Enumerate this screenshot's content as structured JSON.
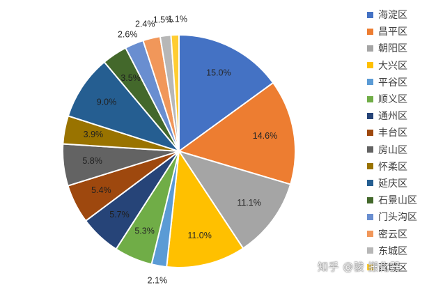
{
  "chart_data": {
    "type": "pie",
    "title": "",
    "start_angle": 0,
    "direction": "clockwise",
    "legend_position": "right",
    "slices": [
      {
        "name": "海淀区",
        "value": 15.0,
        "label": "15.0%",
        "color": "#4472C4"
      },
      {
        "name": "昌平区",
        "value": 14.6,
        "label": "14.6%",
        "color": "#ED7D31"
      },
      {
        "name": "朝阳区",
        "value": 11.1,
        "label": "11.1%",
        "color": "#A5A5A5"
      },
      {
        "name": "大兴区",
        "value": 11.0,
        "label": "11.0%",
        "color": "#FFC000"
      },
      {
        "name": "平谷区",
        "value": 2.1,
        "label": "2.1%",
        "color": "#5B9BD5"
      },
      {
        "name": "顺义区",
        "value": 5.3,
        "label": "5.3%",
        "color": "#70AD47"
      },
      {
        "name": "通州区",
        "value": 5.7,
        "label": "5.7%",
        "color": "#264478"
      },
      {
        "name": "丰台区",
        "value": 5.4,
        "label": "5.4%",
        "color": "#9E480E"
      },
      {
        "name": "房山区",
        "value": 5.8,
        "label": "5.8%",
        "color": "#636363"
      },
      {
        "name": "怀柔区",
        "value": 3.9,
        "label": "3.9%",
        "color": "#997300"
      },
      {
        "name": "延庆区",
        "value": 9.0,
        "label": "9.0%",
        "color": "#255E91"
      },
      {
        "name": "石景山区",
        "value": 3.5,
        "label": "3.5%",
        "color": "#43682B"
      },
      {
        "name": "门头沟区",
        "value": 2.6,
        "label": "2.6%",
        "color": "#698ED0"
      },
      {
        "name": "密云区",
        "value": 2.4,
        "label": "2.4%",
        "color": "#F1975A"
      },
      {
        "name": "东城区",
        "value": 1.5,
        "label": "1.5%",
        "color": "#B7B7B7"
      },
      {
        "name": "西城区",
        "value": 1.1,
        "label": "1.1%",
        "color": "#FFCD33"
      }
    ]
  },
  "watermark": "知乎 @骏 搬化器"
}
